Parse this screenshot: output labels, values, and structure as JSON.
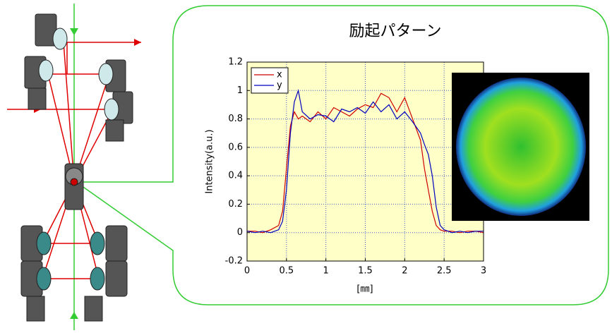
{
  "chart_data": {
    "type": "line",
    "title": "励起パターン",
    "xlabel": "[㎜]",
    "ylabel": "Intensity(a.u.)",
    "x": [
      0,
      0.1,
      0.2,
      0.3,
      0.4,
      0.45,
      0.5,
      0.55,
      0.6,
      0.65,
      0.7,
      0.8,
      0.9,
      1.0,
      1.1,
      1.2,
      1.3,
      1.4,
      1.5,
      1.6,
      1.7,
      1.8,
      1.9,
      2.0,
      2.1,
      2.2,
      2.25,
      2.3,
      2.35,
      2.4,
      2.45,
      2.5,
      2.6,
      2.7,
      2.8,
      2.9,
      3.0
    ],
    "series": [
      {
        "name": "x",
        "color": "#d00000",
        "values": [
          0.01,
          0.01,
          0.0,
          0.02,
          0.05,
          0.15,
          0.45,
          0.75,
          0.85,
          0.8,
          0.82,
          0.78,
          0.85,
          0.8,
          0.88,
          0.85,
          0.82,
          0.87,
          0.9,
          0.88,
          0.98,
          0.95,
          0.85,
          0.95,
          0.8,
          0.65,
          0.45,
          0.3,
          0.15,
          0.05,
          0.02,
          0.01,
          0.01,
          0.0,
          0.01,
          0.01,
          0.0
        ]
      },
      {
        "name": "y",
        "color": "#0000c0",
        "values": [
          0.01,
          0.0,
          0.01,
          0.0,
          0.02,
          0.08,
          0.3,
          0.7,
          0.92,
          1.0,
          0.85,
          0.8,
          0.83,
          0.82,
          0.78,
          0.87,
          0.85,
          0.88,
          0.84,
          0.92,
          0.85,
          0.9,
          0.8,
          0.85,
          0.78,
          0.7,
          0.62,
          0.55,
          0.4,
          0.18,
          0.05,
          0.02,
          0.0,
          0.01,
          0.0,
          0.01,
          0.01
        ]
      }
    ],
    "xlim": [
      0,
      3
    ],
    "xticks": [
      0,
      0.5,
      1,
      1.5,
      2,
      2.5,
      3
    ],
    "ylim": [
      -0.2,
      1.2
    ],
    "yticks": [
      -0.2,
      0,
      0.2,
      0.4,
      0.6,
      0.8,
      1,
      1.2
    ],
    "grid": true,
    "legend": "upper left",
    "background": "#ffffc8"
  }
}
